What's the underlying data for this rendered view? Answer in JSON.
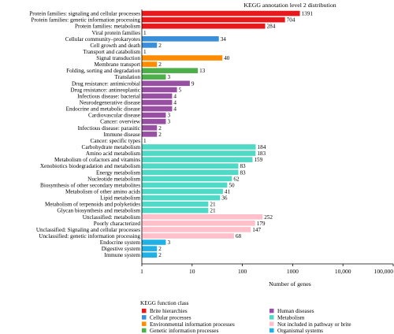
{
  "chart_data": {
    "type": "bar",
    "orientation": "horizontal",
    "title": "KEGG annotation level 2 distribution",
    "xlabel": "Number of genes",
    "ylabel": "",
    "xscale": "log",
    "xlim": [
      1,
      100000
    ],
    "xticks": [
      "1",
      "10",
      "100",
      "1000",
      "10,000",
      "100,000"
    ],
    "grid": false,
    "legend": {
      "title": "KEGG function class",
      "placement": "bottom",
      "items": [
        {
          "name": "Brite hierarchies",
          "color": "#e41a1c"
        },
        {
          "name": "Human diseases",
          "color": "#984ea3"
        },
        {
          "name": "Cellular processes",
          "color": "#3a8fd8"
        },
        {
          "name": "Metabolism",
          "color": "#4fd9c6"
        },
        {
          "name": "Environmental information processes",
          "color": "#ff8c00"
        },
        {
          "name": "Not included in pathway or brite",
          "color": "#ffc0cb"
        },
        {
          "name": "Genetic information processes",
          "color": "#4daf4a"
        },
        {
          "name": "Organismal systems",
          "color": "#1fb0e6"
        }
      ]
    },
    "categories": [
      "Protein families: signaling and cellular processes",
      "Protein families: genetic information processing",
      "Protein families: metabolism",
      "Viral protein families",
      "Cellular community–prokaryotes",
      "Cell growth and death",
      "Transport and catabolism",
      "Signal transduction",
      "Membrane transport",
      "Folding, sorting and degradation",
      "Translation",
      "Drug resistance: antimicrobial",
      "Drug resistance: antineoplastic",
      "Infectious disease: bacterial",
      "Neurodegenerative disease",
      "Endocrine and metabolic disease",
      "Cardiovascular disease",
      "Cancer: overview",
      "Infectious disease: parasitic",
      "Immune disease",
      "Cancer: specific types",
      "Carbohydrate metabolism",
      "Amino acid metabolism",
      "Metabolism of cofactors and vitamins",
      "Xenobiotics biodegradation and metabolism",
      "Energy metabolism",
      "Nucleotide metabolism",
      "Biosynthesis of other secondary metabolites",
      "Metabolism of other amino acids",
      "Lipid metabolism",
      "Metabolism of terpenoids and polyketides",
      "Glycan biosynthesis and metabolism",
      "Unclassified: metabolism",
      "Poorly characterized",
      "Unclassified: Signaling and cellular processes",
      "Unclassified: genetic information processing",
      "Endocrine system",
      "Digestive system",
      "Immune system"
    ],
    "values": [
      1391,
      704,
      284,
      1,
      34,
      2,
      1,
      40,
      2,
      13,
      3,
      9,
      5,
      4,
      4,
      4,
      3,
      3,
      2,
      2,
      1,
      184,
      183,
      159,
      83,
      83,
      62,
      50,
      41,
      36,
      21,
      21,
      252,
      179,
      147,
      68,
      3,
      2,
      2
    ],
    "value_labels": [
      "1391",
      "704",
      "284",
      "1",
      "34",
      "2",
      "1",
      "40",
      "2",
      "13",
      "3",
      "9",
      "5",
      "4",
      "4",
      "4",
      "3",
      "3",
      "2",
      "2",
      "1",
      "184",
      "183",
      "159",
      "83",
      "83",
      "62",
      "50",
      "41",
      "36",
      "21",
      "21",
      "252",
      "179",
      "147",
      "68",
      "3",
      "2",
      "2"
    ],
    "classes": [
      "Brite hierarchies",
      "Brite hierarchies",
      "Brite hierarchies",
      "Brite hierarchies",
      "Cellular processes",
      "Cellular processes",
      "Cellular processes",
      "Environmental information processes",
      "Environmental information processes",
      "Genetic information processes",
      "Genetic information processes",
      "Human diseases",
      "Human diseases",
      "Human diseases",
      "Human diseases",
      "Human diseases",
      "Human diseases",
      "Human diseases",
      "Human diseases",
      "Human diseases",
      "Human diseases",
      "Metabolism",
      "Metabolism",
      "Metabolism",
      "Metabolism",
      "Metabolism",
      "Metabolism",
      "Metabolism",
      "Metabolism",
      "Metabolism",
      "Metabolism",
      "Metabolism",
      "Not included in pathway or brite",
      "Not included in pathway or brite",
      "Not included in pathway or brite",
      "Not included in pathway or brite",
      "Organismal systems",
      "Organismal systems",
      "Organismal systems"
    ]
  }
}
